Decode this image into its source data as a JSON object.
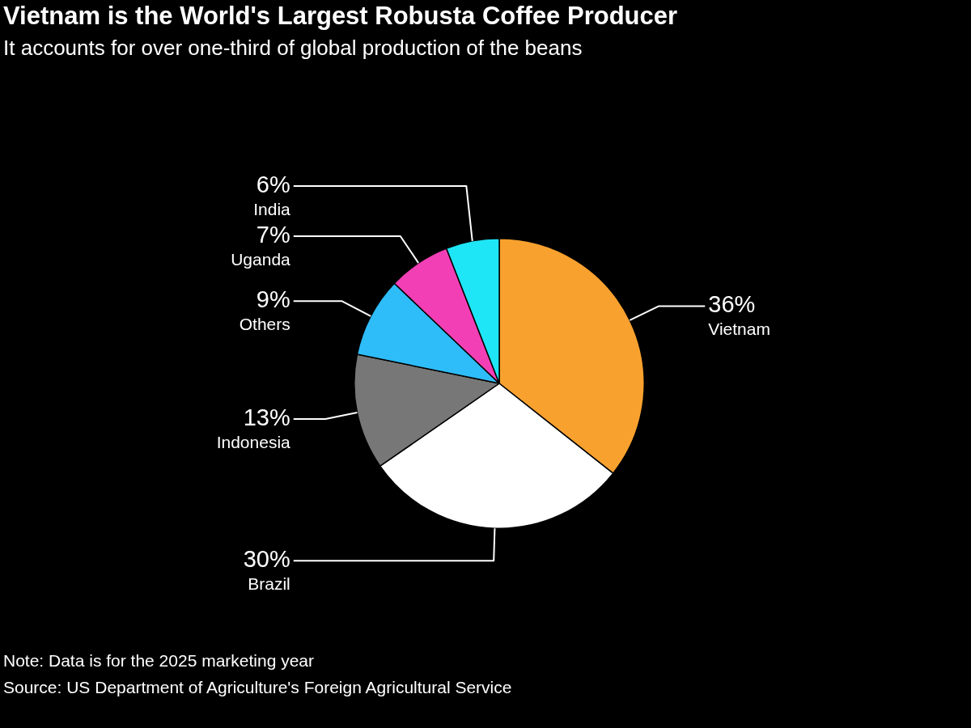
{
  "chart_data": {
    "type": "pie",
    "title": "Vietnam is the World's Largest Robusta Coffee Producer",
    "subtitle": "It accounts for over one-third of global production of the beans",
    "categories": [
      "Vietnam",
      "Brazil",
      "Indonesia",
      "Others",
      "Uganda",
      "India"
    ],
    "values": [
      36,
      30,
      13,
      9,
      7,
      6
    ],
    "value_labels": [
      "36%",
      "30%",
      "13%",
      "9%",
      "7%",
      "6%"
    ],
    "colors": [
      "#f9a12e",
      "#ffffff",
      "#777777",
      "#2ebdf9",
      "#f33fb5",
      "#1ee6f6"
    ],
    "annotations": [
      "Note: Data is for the 2025 marketing year",
      "Source: US Department of Agriculture's Foreign Agricultural Service"
    ]
  }
}
